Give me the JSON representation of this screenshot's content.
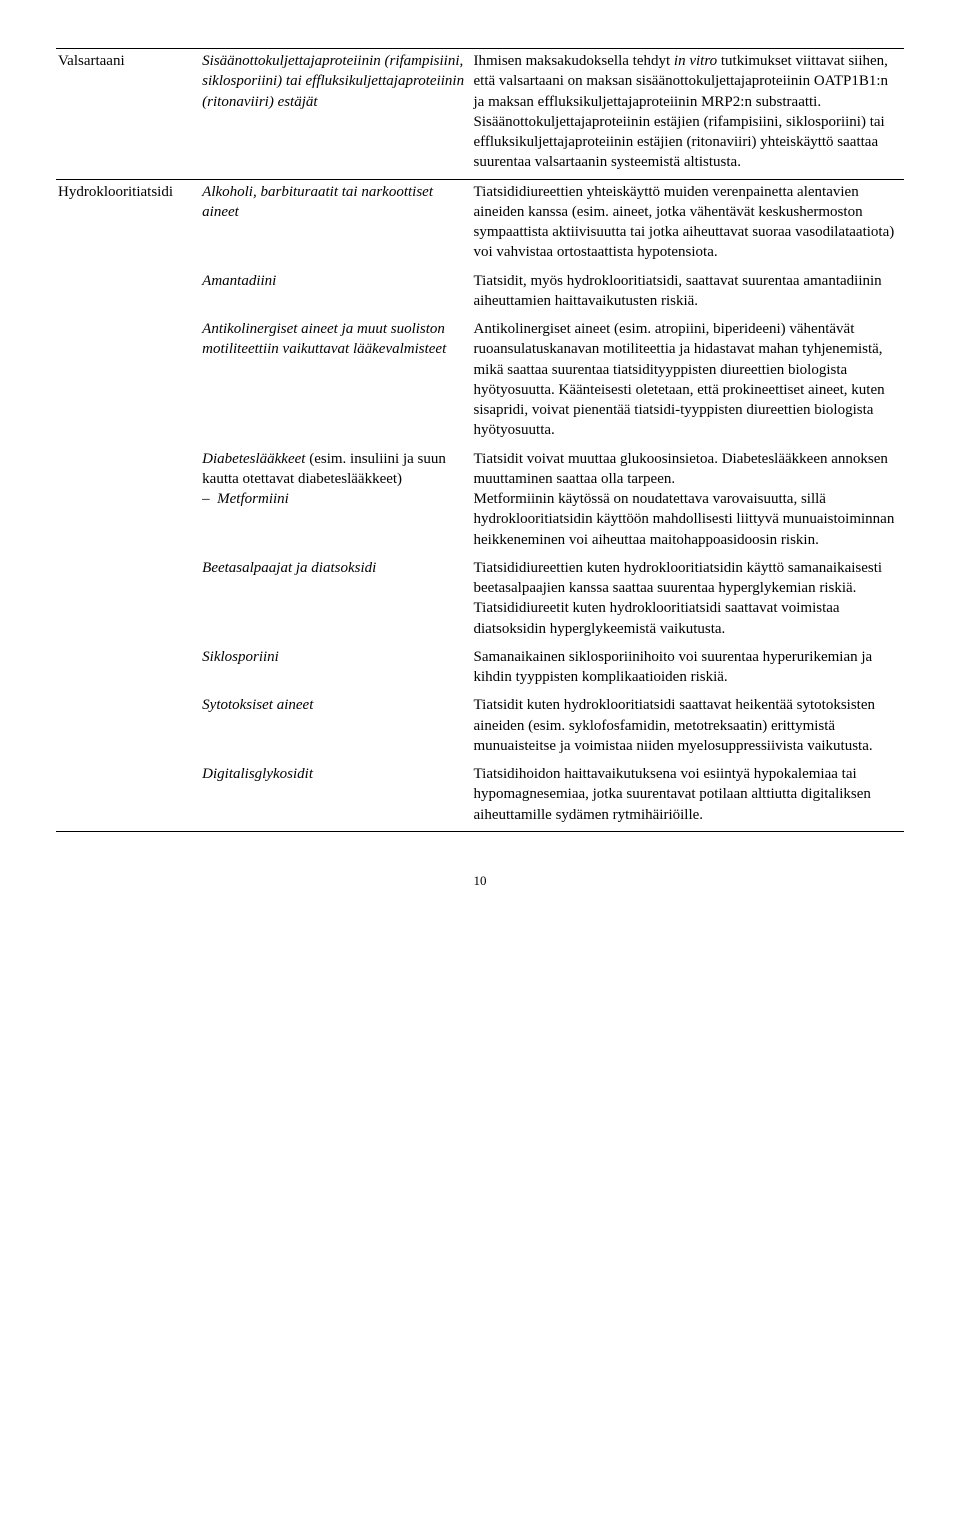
{
  "rows": [
    {
      "col1": "Valsartaani",
      "col2_html": "<span class='ital'>Sisäänottokuljettajaproteiinin (rifampisiini, siklosporiini) tai effluksikuljettajaproteiinin (ritonaviiri) estäjät</span>",
      "col3_html": "Ihmisen maksakudoksella tehdyt <span class='ital'>in vitro</span> tutkimukset viittavat siihen, että valsartaani on maksan sisäänottokuljettajaproteiinin OATP1B1:n ja maksan effluksikuljettajaproteiinin MRP2:n substraatti. Sisäänottokuljettajaproteiinin estäjien (rifampisiini, siklosporiini) tai effluksikuljettajaproteiinin estäjien (ritonaviiri) yhteiskäyttö saattaa suurentaa valsartaanin systeemistä altistusta.",
      "topborder": true
    },
    {
      "col1": "Hydroklooritiatsidi",
      "col2_html": "<span class='ital'>Alkoholi, barbituraatit tai narkoottiset aineet</span>",
      "col3_html": "Tiatsididiureettien yhteiskäyttö muiden verenpainetta alentavien aineiden kanssa (esim. aineet, jotka vähentävät keskushermoston sympaattista aktiivisuutta tai jotka aiheuttavat suoraa vasodilataatiota) voi vahvistaa ortostaattista hypotensiota.",
      "topborder": true
    },
    {
      "col1": "",
      "col2_html": "<span class='ital'>Amantadiini</span>",
      "col3_html": "Tiatsidit, myös hydroklooritiatsidi, saattavat suurentaa amantadiinin aiheuttamien haittavaikutusten riskiä."
    },
    {
      "col1": "",
      "col2_html": "<span class='ital'>Antikolinergiset aineet ja muut suoliston motiliteettiin vaikuttavat lääkevalmisteet</span>",
      "col3_html": "Antikolinergiset aineet (esim. atropiini, biperideeni) vähentävät ruoansulatuskanavan motiliteettia ja hidastavat mahan tyhjenemistä, mikä saattaa suurentaa tiatsidityyppisten diureettien biologista hyötyosuutta. Käänteisesti oletetaan, että prokineettiset aineet, kuten sisapridi, voivat pienentää tiatsidi-tyyppisten diureettien biologista hyötyosuutta."
    },
    {
      "col1": "",
      "col2_html": "<span class='ital'>Diabeteslääkkeet</span> (esim. insuliini ja suun kautta otettavat diabeteslääkkeet)<div class='indent-list ital'>&ndash;&nbsp;&nbsp;Metformiini</div>",
      "col3_html": "Tiatsidit voivat muuttaa glukoosinsietoa. Diabeteslääkkeen annoksen muuttaminen saattaa olla tarpeen.<br>Metformiinin käytössä on noudatettava varovaisuutta, sillä hydroklooritiatsidin käyttöön mahdollisesti liittyvä munuaistoiminnan heikkeneminen voi aiheuttaa maitohappoasidoosin riskin."
    },
    {
      "col1": "",
      "col2_html": "<span class='ital'>Beetasalpaajat ja diatsoksidi</span>",
      "col3_html": "Tiatsididiureettien kuten hydroklooritiatsidin käyttö samanaikaisesti beetasalpaajien kanssa saattaa suurentaa hyperglykemian riskiä. Tiatsididiureetit kuten hydroklooritiatsidi saattavat voimistaa diatsoksidin hyperglykeemistä vaikutusta."
    },
    {
      "col1": "",
      "col2_html": "<span class='ital'>Siklosporiini</span>",
      "col3_html": "Samanaikainen siklosporiinihoito voi suurentaa hyperurikemian ja kihdin tyyppisten komplikaatioiden riskiä."
    },
    {
      "col1": "",
      "col2_html": "<span class='ital'>Sytotoksiset aineet</span>",
      "col3_html": "Tiatsidit kuten hydroklooritiatsidi saattavat heikentää sytotoksisten aineiden (esim. syklofosfamidin, metotreksaatin) erittymistä munuaisteitse ja voimistaa niiden myelosuppressiivista vaikutusta."
    },
    {
      "col1": "",
      "col2_html": "<span class='ital'>Digitalisglykosidit</span>",
      "col3_html": "Tiatsidihoidon haittavaikutuksena voi esiintyä hypokalemiaa tai hypomagnesemiaa, jotka suurentavat potilaan alttiutta digitaliksen aiheuttamille sydämen rytmihäiriöille.",
      "botborder": true
    }
  ],
  "pageNumber": "10"
}
